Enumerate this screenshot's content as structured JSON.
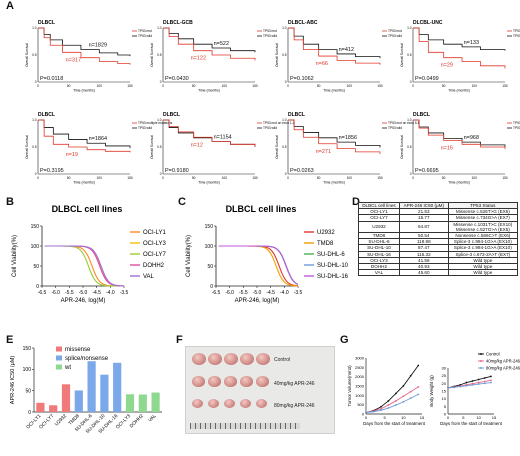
{
  "panel_labels": [
    "A",
    "B",
    "C",
    "D",
    "E",
    "F",
    "G"
  ],
  "km_common": {
    "xlabel": "Time (months)",
    "ylabel": "Overall Survival",
    "xticks": [
      "0",
      "50",
      "100",
      "150"
    ],
    "yticks": [
      "0",
      "0.5",
      "1.0"
    ],
    "mut_legend": "TP53 mut",
    "wt_legend": "TP53 wild"
  },
  "km_plots": [
    {
      "title": "DLBCL",
      "n_black": "n=1829",
      "n_red": "n=317",
      "pval": "P=0.0118",
      "mut": [
        [
          0,
          1
        ],
        [
          10,
          0.82
        ],
        [
          20,
          0.68
        ],
        [
          40,
          0.55
        ],
        [
          70,
          0.45
        ],
        [
          100,
          0.38
        ],
        [
          130,
          0.34
        ],
        [
          150,
          0.32
        ]
      ],
      "wt": [
        [
          0,
          1
        ],
        [
          10,
          0.88
        ],
        [
          20,
          0.78
        ],
        [
          40,
          0.68
        ],
        [
          70,
          0.6
        ],
        [
          100,
          0.54
        ],
        [
          130,
          0.5
        ],
        [
          150,
          0.48
        ]
      ],
      "legend": [
        "TP53 mut",
        "TP53 wild"
      ]
    },
    {
      "title": "DLBCL-GCB",
      "n_black": "n=522",
      "n_red": "n=122",
      "pval": "P=0.0430",
      "mut": [
        [
          0,
          1
        ],
        [
          10,
          0.84
        ],
        [
          25,
          0.7
        ],
        [
          50,
          0.58
        ],
        [
          80,
          0.5
        ],
        [
          110,
          0.44
        ],
        [
          150,
          0.4
        ]
      ],
      "wt": [
        [
          0,
          1
        ],
        [
          10,
          0.9
        ],
        [
          25,
          0.8
        ],
        [
          50,
          0.7
        ],
        [
          80,
          0.63
        ],
        [
          110,
          0.58
        ],
        [
          150,
          0.55
        ]
      ],
      "legend": [
        "TP53 mut",
        "TP53 wild"
      ]
    },
    {
      "title": "DLBCL-ABC",
      "n_black": "n=412",
      "n_red": "n=66",
      "pval": "P=0.1062",
      "mut": [
        [
          0,
          1
        ],
        [
          10,
          0.78
        ],
        [
          25,
          0.6
        ],
        [
          50,
          0.48
        ],
        [
          80,
          0.4
        ],
        [
          110,
          0.35
        ],
        [
          150,
          0.32
        ]
      ],
      "wt": [
        [
          0,
          1
        ],
        [
          10,
          0.85
        ],
        [
          25,
          0.7
        ],
        [
          50,
          0.6
        ],
        [
          80,
          0.52
        ],
        [
          110,
          0.47
        ],
        [
          150,
          0.44
        ]
      ],
      "legend": [
        "TP53 mut",
        "TP53 wild"
      ]
    },
    {
      "title": "DLCBL-UNC",
      "n_black": "n=133",
      "n_red": "n=29",
      "pval": "P=0.0499",
      "mut": [
        [
          0,
          1
        ],
        [
          10,
          0.75
        ],
        [
          25,
          0.55
        ],
        [
          50,
          0.45
        ],
        [
          80,
          0.38
        ],
        [
          110,
          0.3
        ],
        [
          150,
          0.25
        ]
      ],
      "wt": [
        [
          0,
          1
        ],
        [
          10,
          0.88
        ],
        [
          25,
          0.78
        ],
        [
          50,
          0.7
        ],
        [
          80,
          0.65
        ],
        [
          110,
          0.6
        ],
        [
          150,
          0.58
        ]
      ],
      "legend": [
        "TP53 mut",
        "TP53 wild"
      ]
    },
    {
      "title": "DLBCL",
      "n_black": "n=1864",
      "n_red": "n=19",
      "pval": "P=0.3195",
      "mut": [
        [
          0,
          1
        ],
        [
          10,
          0.7
        ],
        [
          25,
          0.55
        ],
        [
          50,
          0.5
        ],
        [
          80,
          0.45
        ],
        [
          110,
          0.42
        ],
        [
          150,
          0.4
        ]
      ],
      "wt": [
        [
          0,
          1
        ],
        [
          10,
          0.86
        ],
        [
          25,
          0.74
        ],
        [
          50,
          0.64
        ],
        [
          80,
          0.57
        ],
        [
          110,
          0.52
        ],
        [
          150,
          0.48
        ]
      ],
      "legend": [
        "TP53 multiple mutations",
        "TP53 wild"
      ]
    },
    {
      "title": "DLBCL",
      "n_black": "n=1154",
      "n_red": "n=12",
      "pval": "P=0.9180",
      "mut": [
        [
          0,
          1
        ],
        [
          10,
          0.88
        ],
        [
          25,
          0.78
        ],
        [
          50,
          0.68
        ],
        [
          80,
          0.6
        ],
        [
          110,
          0.55
        ],
        [
          150,
          0.5
        ]
      ],
      "wt": [
        [
          0,
          1
        ],
        [
          10,
          0.86
        ],
        [
          25,
          0.76
        ],
        [
          50,
          0.67
        ],
        [
          80,
          0.6
        ],
        [
          110,
          0.55
        ],
        [
          150,
          0.51
        ]
      ],
      "legend": [
        "TP53 mut on exon 1-4",
        "TP53 wild"
      ]
    },
    {
      "title": "DLBCL",
      "n_black": "n=1856",
      "n_red": "n=271",
      "pval": "P=0.0263",
      "mut": [
        [
          0,
          1
        ],
        [
          10,
          0.82
        ],
        [
          25,
          0.68
        ],
        [
          50,
          0.56
        ],
        [
          80,
          0.47
        ],
        [
          110,
          0.41
        ],
        [
          150,
          0.37
        ]
      ],
      "wt": [
        [
          0,
          1
        ],
        [
          10,
          0.88
        ],
        [
          25,
          0.77
        ],
        [
          50,
          0.67
        ],
        [
          80,
          0.59
        ],
        [
          110,
          0.53
        ],
        [
          150,
          0.49
        ]
      ],
      "legend": [
        "TP53 mut on exon 5-8",
        "TP53 wild"
      ]
    },
    {
      "title": "DLBCL",
      "n_black": "n=968",
      "n_red": "n=15",
      "pval": "P=0.6695",
      "mut": [
        [
          0,
          1
        ],
        [
          10,
          0.85
        ],
        [
          25,
          0.72
        ],
        [
          50,
          0.62
        ],
        [
          80,
          0.55
        ],
        [
          110,
          0.5
        ],
        [
          150,
          0.46
        ]
      ],
      "wt": [
        [
          0,
          1
        ],
        [
          10,
          0.87
        ],
        [
          25,
          0.76
        ],
        [
          50,
          0.66
        ],
        [
          80,
          0.59
        ],
        [
          110,
          0.54
        ],
        [
          150,
          0.5
        ]
      ],
      "legend": [
        "TP53 mut on exon 9-11",
        "TP53 wild"
      ]
    }
  ],
  "dose_common": {
    "xlabel": "APR-246, log(M)",
    "ylabel": "Cell Viability(%)",
    "xticks": [
      "-6.5",
      "-6.0",
      "-5.5",
      "-5.0",
      "-4.5",
      "-4.0",
      "-3.5"
    ],
    "yticks": [
      "0",
      "50",
      "100",
      "150"
    ]
  },
  "dose_B": {
    "title": "DLBCL cell lines",
    "series": [
      {
        "name": "OCI-LY1",
        "color": "#ff8a1f",
        "ic50": -4.67
      },
      {
        "name": "OCI-LY3",
        "color": "#f2c200",
        "ic50": -4.38
      },
      {
        "name": "OCI-LY7",
        "color": "#9acd32",
        "ic50": -4.8
      },
      {
        "name": "DOHH2",
        "color": "#e04da0",
        "ic50": -4.39
      },
      {
        "name": "VAL",
        "color": "#a070d8",
        "ic50": -4.34
      }
    ]
  },
  "dose_C": {
    "title": "DLBCL cell lines",
    "series": [
      {
        "name": "U2932",
        "color": "#e0392b",
        "ic50": -4.19
      },
      {
        "name": "TMD8",
        "color": "#f0a000",
        "ic50": -4.3
      },
      {
        "name": "SU-DHL-6",
        "color": "#4caf50",
        "ic50": -3.93
      },
      {
        "name": "SU-DHL-10",
        "color": "#6f9cd8",
        "ic50": -3.93
      },
      {
        "name": "SU-DHL-16",
        "color": "#c05ad8",
        "ic50": -3.94
      }
    ]
  },
  "table": {
    "headers": [
      "DLBCL cell lines",
      "APR-246 IC50 (μM)",
      "TP53 Status"
    ],
    "rows": [
      [
        "OCI-LY1",
        "21.53",
        "Missense c.526T>G (EX5)"
      ],
      [
        "OCI-LY7",
        "15.77",
        "Missense c.734G>A (EX7)"
      ],
      [
        "U2932",
        "64.87",
        "Missense c.1031T>C (EX10)\nMissense c.527G>A (EX5)"
      ],
      [
        "TMD8",
        "50.54",
        "Nonsense c.586C>T (EX6)"
      ],
      [
        "SU-DHL-6",
        "118.98",
        "Splice-3 c.994-1G>A (EX10)"
      ],
      [
        "SU-DHL-10",
        "87.47",
        "Splice-3 c.994-1G>A (EX10)"
      ],
      [
        "SU-DHL-16",
        "115.32",
        "Splice-3 c.673-2A>T (EX7)"
      ],
      [
        "OCI-LY3",
        "41.58",
        "Wild type"
      ],
      [
        "DOHH2",
        "40.93",
        "Wild type"
      ],
      [
        "VAL",
        "45.60",
        "Wild type"
      ]
    ]
  },
  "bar_E": {
    "ylabel": "APR-246 IC50 (μM)",
    "yticks": [
      "0",
      "50",
      "100",
      "150"
    ],
    "legend": [
      {
        "name": "missense",
        "color": "#f07a7a"
      },
      {
        "name": "splice/nonsense",
        "color": "#7aa8e8"
      },
      {
        "name": "wt",
        "color": "#8fd88f"
      }
    ],
    "categories": [
      "OCI-LY1",
      "OCI-LY7",
      "U2932",
      "TMD8",
      "SU-DHL-6",
      "SU-DHL-10",
      "SU-DHL-16",
      "OCI-LY3",
      "DOHH2",
      "VAL"
    ],
    "values": [
      21.53,
      15.77,
      64.87,
      50.54,
      118.98,
      87.47,
      115.32,
      41.58,
      40.93,
      45.6
    ],
    "groups": [
      0,
      0,
      0,
      1,
      1,
      1,
      1,
      2,
      2,
      2
    ]
  },
  "photo_F": {
    "labels": [
      "Control",
      "40mg/kg APR-246",
      "80mg/kg APR-246"
    ]
  },
  "growth_common": {
    "xlabel": "Days from the start of treatment",
    "xticks": [
      "0",
      "5",
      "10",
      "15"
    ]
  },
  "tumor_G": {
    "ylabel": "Tumor Volume(mm3)",
    "yticks": [
      "0",
      "500",
      "1000",
      "1500",
      "2000",
      "2500",
      "3000"
    ]
  },
  "weight_G": {
    "ylabel": "Body Weight (g)",
    "yticks": [
      "0",
      "5",
      "10",
      "15",
      "20",
      "25",
      "30"
    ]
  },
  "growth_legend": [
    {
      "name": "Control",
      "color": "#111111"
    },
    {
      "name": "40mg/kg APR-246",
      "color": "#e86a8a"
    },
    {
      "name": "80mg/kg APR-246",
      "color": "#6f9cd8"
    }
  ],
  "chart_data": [
    {
      "type": "bar",
      "categories": [
        "OCI-LY1",
        "OCI-LY7",
        "U2932",
        "TMD8",
        "SU-DHL-6",
        "SU-DHL-10",
        "SU-DHL-16",
        "OCI-LY3",
        "DOHH2",
        "VAL"
      ],
      "values": [
        21.53,
        15.77,
        64.87,
        50.54,
        118.98,
        87.47,
        115.32,
        41.58,
        40.93,
        45.6
      ],
      "ylabel": "APR-246 IC50 (μM)",
      "ylim": [
        0,
        150
      ]
    },
    {
      "type": "line",
      "x": [
        0,
        2,
        4,
        6,
        8,
        10,
        12,
        14
      ],
      "series": [
        {
          "name": "Control",
          "values": [
            80,
            180,
            380,
            700,
            1100,
            1500,
            2050,
            2600
          ]
        },
        {
          "name": "40mg/kg APR-246",
          "values": [
            80,
            150,
            280,
            480,
            700,
            950,
            1200,
            1450
          ]
        },
        {
          "name": "80mg/kg APR-246",
          "values": [
            80,
            120,
            200,
            320,
            480,
            650,
            850,
            1050
          ]
        }
      ],
      "xlabel": "Days from the start of treatment",
      "ylabel": "Tumor Volume(mm3)",
      "ylim": [
        0,
        3000
      ]
    },
    {
      "type": "line",
      "x": [
        0,
        2,
        4,
        6,
        8,
        10,
        12,
        14
      ],
      "series": [
        {
          "name": "Control",
          "values": [
            17,
            18,
            19,
            20.5,
            21.5,
            22.5,
            23.5,
            24.5
          ]
        },
        {
          "name": "40mg/kg APR-246",
          "values": [
            17,
            17.6,
            18.2,
            19,
            19.8,
            20.5,
            21.2,
            22
          ]
        },
        {
          "name": "80mg/kg APR-246",
          "values": [
            17,
            17.4,
            17.9,
            18.4,
            19,
            19.5,
            20,
            20.5
          ]
        }
      ],
      "xlabel": "Days from the start of treatment",
      "ylabel": "Body Weight (g)",
      "ylim": [
        0,
        30
      ]
    }
  ]
}
